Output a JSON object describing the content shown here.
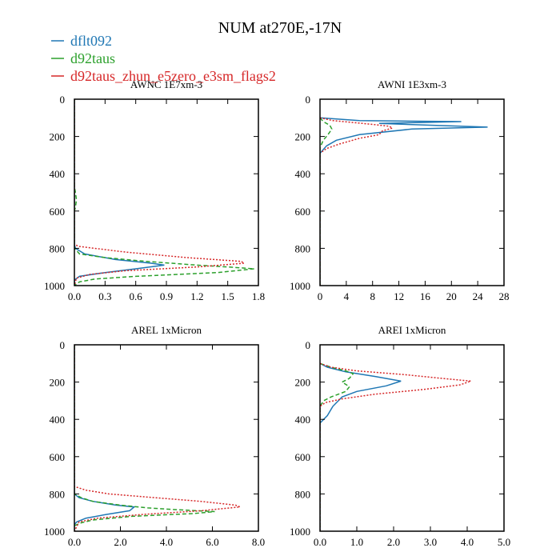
{
  "title": "NUM at270E,-17N",
  "legend": [
    {
      "label": "dflt092",
      "color": "#1f77b4",
      "dash": "solid"
    },
    {
      "label": "d92taus",
      "color": "#2ca02c",
      "dash": "dashed"
    },
    {
      "label": "d92taus_zhun_e5zero_e3sm_flags2",
      "color": "#d62728",
      "dash": "dotted"
    }
  ],
  "chart_data": [
    {
      "type": "line",
      "title": "AWNC  1E7xm-3",
      "xlim": [
        0,
        1.8
      ],
      "ylim": [
        1000,
        0
      ],
      "xticks": [
        "0.0",
        "0.3",
        "0.6",
        "0.9",
        "1.2",
        "1.5",
        "1.8"
      ],
      "yticks": [
        "0",
        "200",
        "400",
        "600",
        "800",
        "1000"
      ],
      "series": [
        {
          "name": "dflt092",
          "points": [
            [
              0,
              0
            ],
            [
              0,
              780
            ],
            [
              0.01,
              800
            ],
            [
              0.1,
              830
            ],
            [
              0.4,
              860
            ],
            [
              0.75,
              880
            ],
            [
              0.88,
              890
            ],
            [
              0.6,
              910
            ],
            [
              0.3,
              930
            ],
            [
              0.05,
              950
            ],
            [
              0,
              970
            ],
            [
              0,
              1000
            ]
          ]
        },
        {
          "name": "d92taus",
          "points": [
            [
              0,
              0
            ],
            [
              0,
              470
            ],
            [
              0.01,
              500
            ],
            [
              0.02,
              540
            ],
            [
              0.01,
              580
            ],
            [
              0,
              600
            ],
            [
              0,
              800
            ],
            [
              0.05,
              830
            ],
            [
              0.3,
              850
            ],
            [
              0.7,
              870
            ],
            [
              1.2,
              890
            ],
            [
              1.5,
              900
            ],
            [
              1.76,
              910
            ],
            [
              1.4,
              930
            ],
            [
              0.6,
              950
            ],
            [
              0.2,
              965
            ],
            [
              0.05,
              980
            ],
            [
              0,
              1000
            ]
          ]
        },
        {
          "name": "d92taus_zhun_e5zero_e3sm_flags2",
          "points": [
            [
              0,
              0
            ],
            [
              0,
              780
            ],
            [
              0.05,
              790
            ],
            [
              0.5,
              820
            ],
            [
              1.1,
              850
            ],
            [
              1.63,
              870
            ],
            [
              1.66,
              880
            ],
            [
              1.2,
              900
            ],
            [
              0.5,
              920
            ],
            [
              0.15,
              940
            ],
            [
              0.02,
              960
            ],
            [
              0,
              1000
            ]
          ]
        }
      ]
    },
    {
      "type": "line",
      "title": "AWNI  1E3xm-3",
      "xlim": [
        0,
        28
      ],
      "ylim": [
        1000,
        0
      ],
      "xticks": [
        "0",
        "4",
        "8",
        "12",
        "16",
        "20",
        "24",
        "28"
      ],
      "yticks": [
        "0",
        "200",
        "400",
        "600",
        "800",
        "1000"
      ],
      "series": [
        {
          "name": "dflt092",
          "points": [
            [
              0,
              100
            ],
            [
              6,
              115
            ],
            [
              21.5,
              120
            ],
            [
              9,
              130
            ],
            [
              25.5,
              150
            ],
            [
              14,
              160
            ],
            [
              6,
              190
            ],
            [
              2.5,
              220
            ],
            [
              1,
              250
            ],
            [
              0,
              290
            ],
            [
              0,
              1000
            ]
          ]
        },
        {
          "name": "d92taus",
          "points": [
            [
              0,
              100
            ],
            [
              0.5,
              120
            ],
            [
              1.5,
              140
            ],
            [
              1.8,
              160
            ],
            [
              1.2,
              190
            ],
            [
              0.5,
              220
            ],
            [
              0,
              260
            ],
            [
              0,
              1000
            ]
          ]
        },
        {
          "name": "d92taus_zhun_e5zero_e3sm_flags2",
          "points": [
            [
              0,
              100
            ],
            [
              2,
              115
            ],
            [
              5,
              125
            ],
            [
              8,
              135
            ],
            [
              10.5,
              145
            ],
            [
              11,
              155
            ],
            [
              9.5,
              170
            ],
            [
              9,
              190
            ],
            [
              6,
              210
            ],
            [
              3,
              240
            ],
            [
              1,
              265
            ],
            [
              0,
              290
            ],
            [
              0,
              1000
            ]
          ]
        }
      ]
    },
    {
      "type": "line",
      "title": "AREL  1xMicron",
      "xlim": [
        0,
        8
      ],
      "ylim": [
        1000,
        0
      ],
      "xticks": [
        "0.0",
        "2.0",
        "4.0",
        "6.0",
        "8.0"
      ],
      "yticks": [
        "0",
        "200",
        "400",
        "600",
        "800",
        "1000"
      ],
      "series": [
        {
          "name": "dflt092",
          "points": [
            [
              0,
              0
            ],
            [
              0,
              800
            ],
            [
              0.2,
              820
            ],
            [
              0.8,
              840
            ],
            [
              1.8,
              860
            ],
            [
              2.6,
              870
            ],
            [
              2.4,
              890
            ],
            [
              1.4,
              910
            ],
            [
              0.5,
              930
            ],
            [
              0.1,
              950
            ],
            [
              0,
              965
            ],
            [
              0,
              1000
            ]
          ]
        },
        {
          "name": "d92taus",
          "points": [
            [
              0,
              0
            ],
            [
              0,
              800
            ],
            [
              0.3,
              820
            ],
            [
              0.8,
              840
            ],
            [
              2,
              860
            ],
            [
              3.2,
              875
            ],
            [
              4.5,
              885
            ],
            [
              6.1,
              895
            ],
            [
              5.2,
              905
            ],
            [
              2.5,
              920
            ],
            [
              0.8,
              940
            ],
            [
              0.3,
              955
            ],
            [
              0,
              970
            ],
            [
              0,
              1000
            ]
          ]
        },
        {
          "name": "d92taus_zhun_e5zero_e3sm_flags2",
          "points": [
            [
              0,
              0
            ],
            [
              0,
              760
            ],
            [
              0.5,
              780
            ],
            [
              1.5,
              800
            ],
            [
              3.5,
              820
            ],
            [
              5.5,
              840
            ],
            [
              7.0,
              860
            ],
            [
              7.2,
              870
            ],
            [
              5.5,
              890
            ],
            [
              3,
              910
            ],
            [
              1,
              930
            ],
            [
              0.2,
              950
            ],
            [
              0,
              1000
            ]
          ]
        }
      ]
    },
    {
      "type": "line",
      "title": "AREI  1xMicron",
      "xlim": [
        0,
        5
      ],
      "ylim": [
        1000,
        0
      ],
      "xticks": [
        "0.0",
        "1.0",
        "2.0",
        "3.0",
        "4.0",
        "5.0"
      ],
      "yticks": [
        "0",
        "200",
        "400",
        "600",
        "800",
        "1000"
      ],
      "series": [
        {
          "name": "dflt092",
          "points": [
            [
              0,
              100
            ],
            [
              0.2,
              120
            ],
            [
              0.7,
              145
            ],
            [
              1.5,
              170
            ],
            [
              2.2,
              195
            ],
            [
              1.8,
              220
            ],
            [
              1,
              250
            ],
            [
              0.6,
              280
            ],
            [
              0.35,
              330
            ],
            [
              0.2,
              380
            ],
            [
              0.1,
              400
            ],
            [
              0,
              420
            ],
            [
              0,
              1000
            ]
          ]
        },
        {
          "name": "d92taus",
          "points": [
            [
              0,
              100
            ],
            [
              0.3,
              120
            ],
            [
              0.7,
              140
            ],
            [
              0.9,
              155
            ],
            [
              0.8,
              180
            ],
            [
              0.6,
              200
            ],
            [
              0.8,
              225
            ],
            [
              0.7,
              250
            ],
            [
              0.3,
              280
            ],
            [
              0.1,
              300
            ],
            [
              0,
              330
            ],
            [
              0,
              1000
            ]
          ]
        },
        {
          "name": "d92taus_zhun_e5zero_e3sm_flags2",
          "points": [
            [
              0,
              100
            ],
            [
              0.3,
              120
            ],
            [
              1,
              140
            ],
            [
              2.3,
              160
            ],
            [
              3.3,
              180
            ],
            [
              4.1,
              195
            ],
            [
              3.8,
              215
            ],
            [
              2.8,
              240
            ],
            [
              1.5,
              265
            ],
            [
              0.6,
              290
            ],
            [
              0.15,
              310
            ],
            [
              0,
              330
            ],
            [
              0,
              1000
            ]
          ]
        }
      ]
    }
  ]
}
